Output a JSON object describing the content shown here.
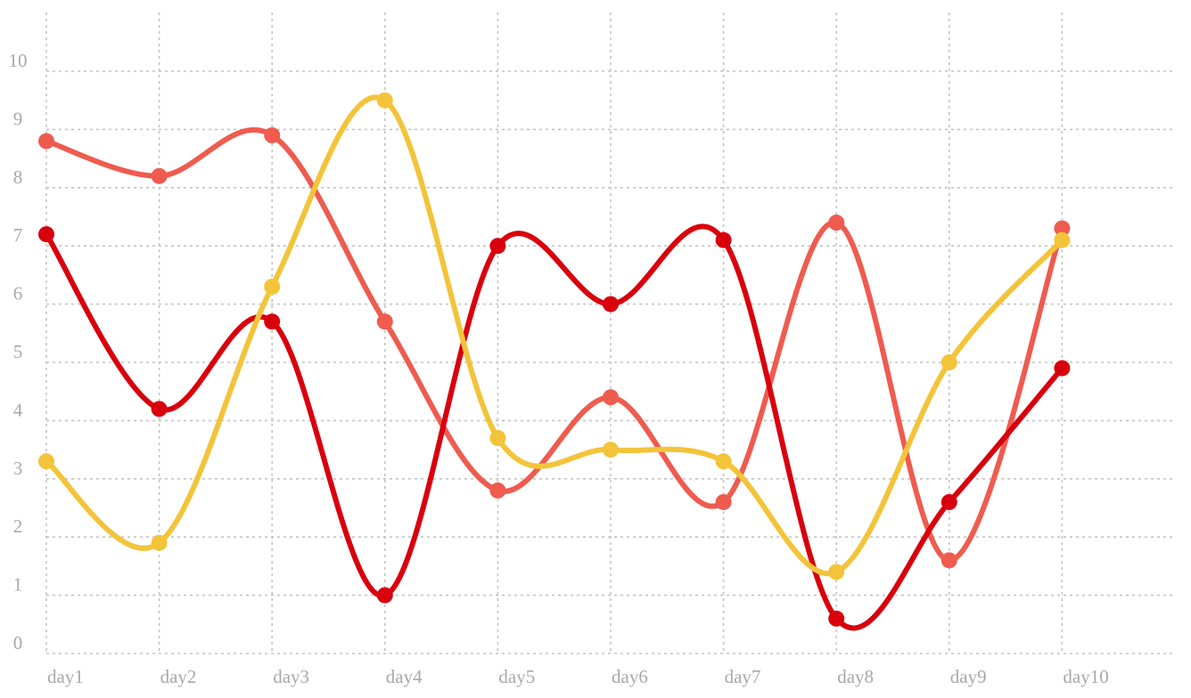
{
  "chart_data": {
    "type": "line",
    "title": "",
    "xlabel": "",
    "ylabel": "",
    "categories": [
      "day1",
      "day2",
      "day3",
      "day4",
      "day5",
      "day6",
      "day7",
      "day8",
      "day9",
      "day10"
    ],
    "ylim": [
      0,
      10
    ],
    "yticks": [
      0,
      1,
      2,
      3,
      4,
      5,
      6,
      7,
      8,
      9,
      10
    ],
    "grid": true,
    "smooth": true,
    "series": [
      {
        "color": "#ef5b4f",
        "values": [
          8.8,
          8.2,
          8.9,
          5.7,
          2.8,
          4.4,
          2.6,
          7.4,
          1.6,
          7.3
        ]
      },
      {
        "color": "#d9000d",
        "values": [
          7.2,
          4.2,
          5.7,
          1.0,
          7.0,
          6.0,
          7.1,
          0.6,
          2.6,
          4.9
        ]
      },
      {
        "color": "#f3c43a",
        "values": [
          3.3,
          1.9,
          6.3,
          9.5,
          3.7,
          3.5,
          3.3,
          1.4,
          5.0,
          7.1
        ]
      }
    ]
  }
}
